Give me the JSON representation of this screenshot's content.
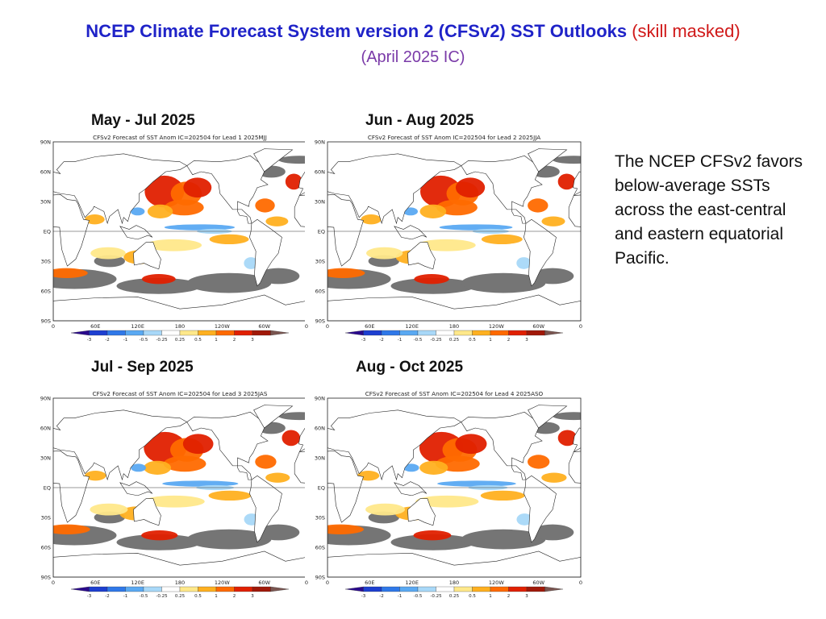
{
  "title": {
    "main": "NCEP Climate Forecast System version 2 (CFSv2) SST Outlooks",
    "qualifier": "(skill masked)",
    "subtitle": "(April 2025 IC)"
  },
  "description": "The NCEP CFSv2 favors below-average SSTs across the east-central and eastern equatorial Pacific.",
  "maps": [
    {
      "season": "May - Jul 2025",
      "header": "CFSv2 Forecast of SST Anom IC=202504 for Lead 1 2025MJJ"
    },
    {
      "season": "Jun - Aug 2025",
      "header": "CFSv2 Forecast of SST Anom IC=202504 for Lead 2 2025JJA"
    },
    {
      "season": "Jul - Sep 2025",
      "header": "CFSv2 Forecast of SST Anom IC=202504 for Lead 3 2025JAS"
    },
    {
      "season": "Aug - Oct 2025",
      "header": "CFSv2 Forecast of SST Anom IC=202504 for Lead 4 2025ASO"
    }
  ],
  "axes": {
    "lat_labels": [
      "90N",
      "60N",
      "30N",
      "EQ",
      "30S",
      "60S",
      "90S"
    ],
    "lon_labels": [
      "0",
      "60E",
      "120E",
      "180",
      "120W",
      "60W",
      "0"
    ]
  },
  "colorbar": {
    "labels": [
      "-3",
      "-2",
      "-1",
      "-0.5",
      "-0.25",
      "0.25",
      "0.5",
      "1",
      "2",
      "3"
    ],
    "colors": [
      "#2a0a8c",
      "#1d3fd0",
      "#2f78e8",
      "#5aa9f2",
      "#a8d8f8",
      "#ffffff",
      "#ffe88a",
      "#ffb020",
      "#ff6a00",
      "#e02000",
      "#a01808",
      "#7a5550"
    ]
  },
  "colors": {
    "land": "#ffffff",
    "masked": "#757575",
    "ocean_neutral": "#ffffff"
  }
}
